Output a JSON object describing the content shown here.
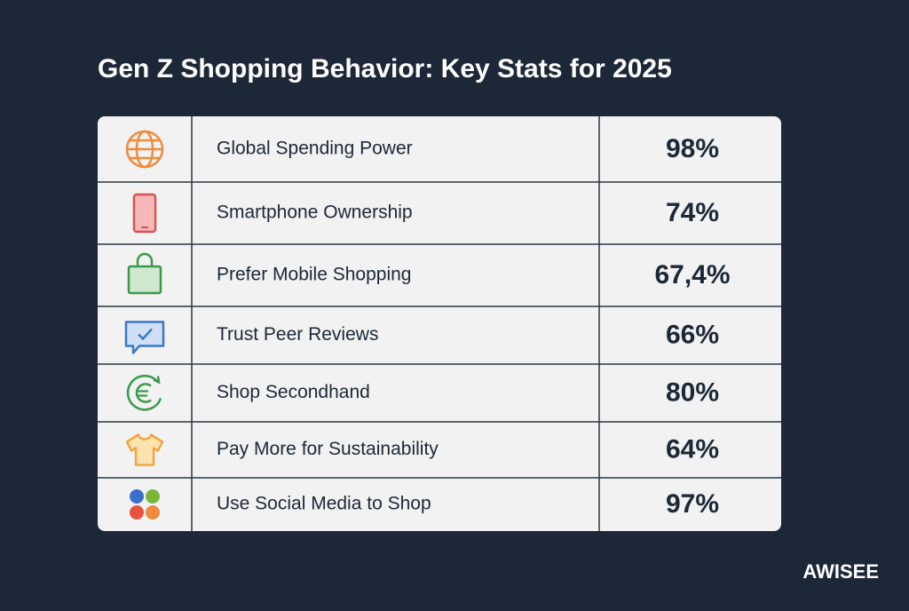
{
  "header": {
    "title": "Gen Z Shopping Behavior: Key Stats for 2025"
  },
  "table": {
    "rows": [
      {
        "label": "Global Spending Power",
        "value": "98%"
      },
      {
        "label": "Smartphone Ownership",
        "value": "74%"
      },
      {
        "label": "Prefer Mobile Shopping",
        "value": "67,4%"
      },
      {
        "label": "Trust Peer Reviews",
        "value": "66%"
      },
      {
        "label": "Shop Secondhand",
        "value": "80%"
      },
      {
        "label": "Pay More for Sustainability",
        "value": "64%"
      },
      {
        "label": "Use Social Media to Shop",
        "value": "97%"
      }
    ]
  },
  "footer": {
    "brand": "AWISEE"
  }
}
